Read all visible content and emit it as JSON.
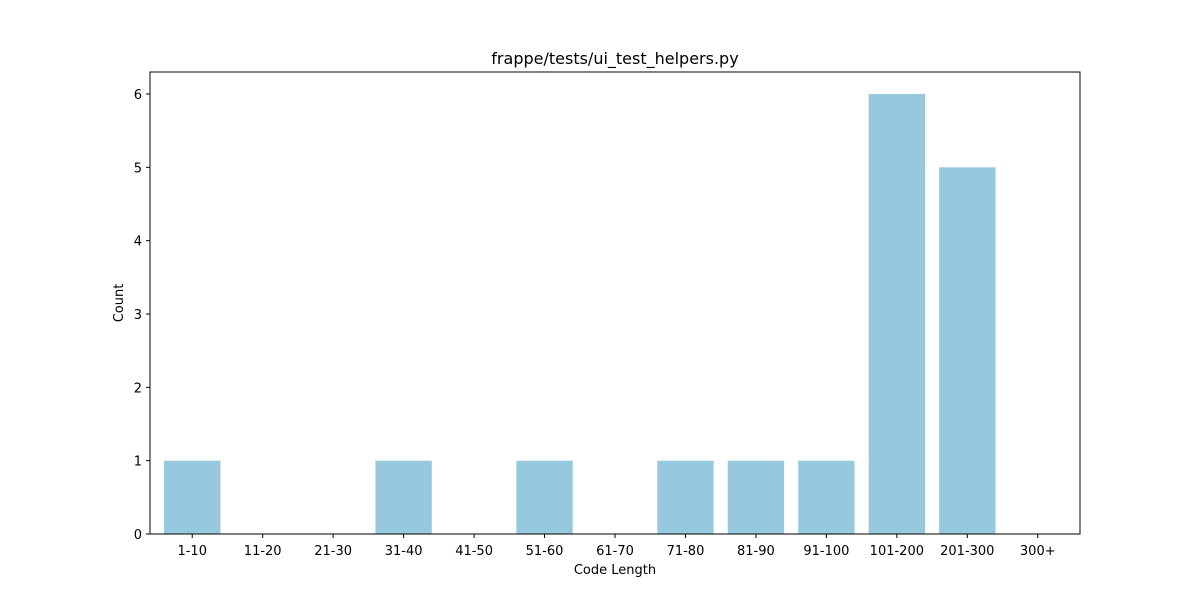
{
  "chart_data": {
    "type": "bar",
    "title": "frappe/tests/ui_test_helpers.py",
    "xlabel": "Code Length",
    "ylabel": "Count",
    "categories": [
      "1-10",
      "11-20",
      "21-30",
      "31-40",
      "41-50",
      "51-60",
      "61-70",
      "71-80",
      "81-90",
      "91-100",
      "101-200",
      "201-300",
      "300+"
    ],
    "values": [
      1,
      0,
      0,
      1,
      0,
      1,
      0,
      1,
      1,
      1,
      6,
      5,
      0
    ],
    "yticks": [
      0,
      1,
      2,
      3,
      4,
      5,
      6
    ],
    "ylim": [
      0,
      6.3
    ],
    "grid": false,
    "bar_color": "#96c9de"
  }
}
